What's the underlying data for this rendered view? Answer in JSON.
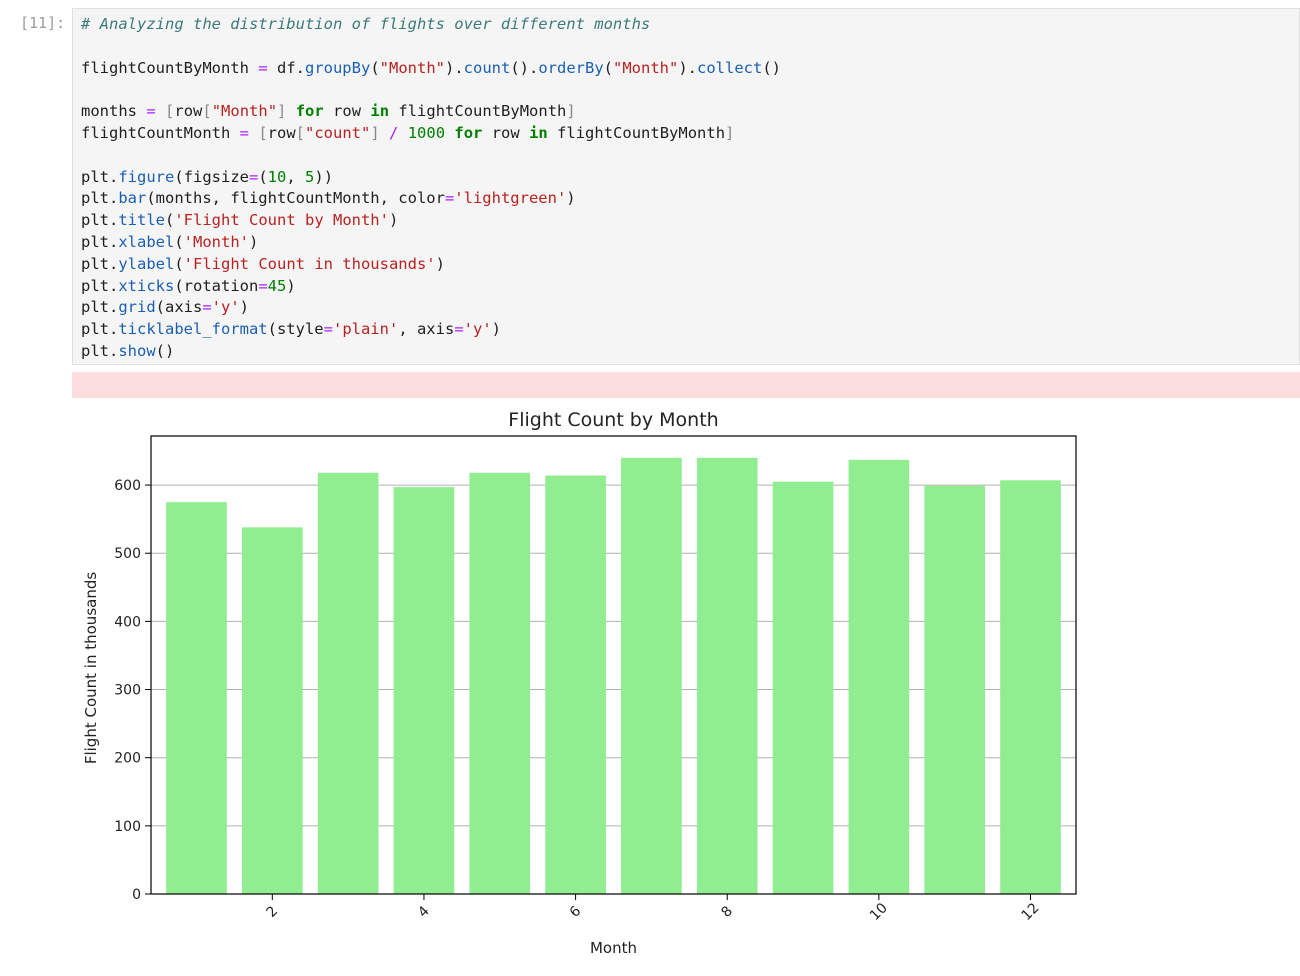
{
  "cell": {
    "prompt": "[11]:",
    "code_lines": [
      [
        [
          "cm",
          "# Analyzing the distribution of flights over different months"
        ]
      ],
      [],
      [
        [
          "pn",
          "flightCountByMonth "
        ],
        [
          "op",
          "="
        ],
        [
          "pn",
          " df."
        ],
        [
          "fn",
          "groupBy"
        ],
        [
          "pn",
          "("
        ],
        [
          "st",
          "\"Month\""
        ],
        [
          "pn",
          ")."
        ],
        [
          "fn",
          "count"
        ],
        [
          "pn",
          "()."
        ],
        [
          "fn",
          "orderBy"
        ],
        [
          "pn",
          "("
        ],
        [
          "st",
          "\"Month\""
        ],
        [
          "pn",
          ")."
        ],
        [
          "fn",
          "collect"
        ],
        [
          "pn",
          "()"
        ]
      ],
      [],
      [
        [
          "pn",
          "months "
        ],
        [
          "op",
          "="
        ],
        [
          "pn",
          " "
        ],
        [
          "bk",
          "["
        ],
        [
          "pn",
          "row"
        ],
        [
          "bk",
          "["
        ],
        [
          "st",
          "\"Month\""
        ],
        [
          "bk",
          "]"
        ],
        [
          "pn",
          " "
        ],
        [
          "kw",
          "for"
        ],
        [
          "pn",
          " row "
        ],
        [
          "kw",
          "in"
        ],
        [
          "pn",
          " flightCountByMonth"
        ],
        [
          "bk",
          "]"
        ]
      ],
      [
        [
          "pn",
          "flightCountMonth "
        ],
        [
          "op",
          "="
        ],
        [
          "pn",
          " "
        ],
        [
          "bk",
          "["
        ],
        [
          "pn",
          "row"
        ],
        [
          "bk",
          "["
        ],
        [
          "st",
          "\"count\""
        ],
        [
          "bk",
          "]"
        ],
        [
          "pn",
          " "
        ],
        [
          "op",
          "/"
        ],
        [
          "pn",
          " "
        ],
        [
          "nu",
          "1000"
        ],
        [
          "pn",
          " "
        ],
        [
          "kw",
          "for"
        ],
        [
          "pn",
          " row "
        ],
        [
          "kw",
          "in"
        ],
        [
          "pn",
          " flightCountByMonth"
        ],
        [
          "bk",
          "]"
        ]
      ],
      [],
      [
        [
          "pn",
          "plt."
        ],
        [
          "fn",
          "figure"
        ],
        [
          "pn",
          "(figsize"
        ],
        [
          "op",
          "="
        ],
        [
          "pn",
          "("
        ],
        [
          "nu",
          "10"
        ],
        [
          "pn",
          ", "
        ],
        [
          "nu",
          "5"
        ],
        [
          "pn",
          "))"
        ]
      ],
      [
        [
          "pn",
          "plt."
        ],
        [
          "fn",
          "bar"
        ],
        [
          "pn",
          "(months, flightCountMonth, color"
        ],
        [
          "op",
          "="
        ],
        [
          "st",
          "'lightgreen'"
        ],
        [
          "pn",
          ")"
        ]
      ],
      [
        [
          "pn",
          "plt."
        ],
        [
          "fn",
          "title"
        ],
        [
          "pn",
          "("
        ],
        [
          "st",
          "'Flight Count by Month'"
        ],
        [
          "pn",
          ")"
        ]
      ],
      [
        [
          "pn",
          "plt."
        ],
        [
          "fn",
          "xlabel"
        ],
        [
          "pn",
          "("
        ],
        [
          "st",
          "'Month'"
        ],
        [
          "pn",
          ")"
        ]
      ],
      [
        [
          "pn",
          "plt."
        ],
        [
          "fn",
          "ylabel"
        ],
        [
          "pn",
          "("
        ],
        [
          "st",
          "'Flight Count in thousands'"
        ],
        [
          "pn",
          ")"
        ]
      ],
      [
        [
          "pn",
          "plt."
        ],
        [
          "fn",
          "xticks"
        ],
        [
          "pn",
          "(rotation"
        ],
        [
          "op",
          "="
        ],
        [
          "nu",
          "45"
        ],
        [
          "pn",
          ")"
        ]
      ],
      [
        [
          "pn",
          "plt."
        ],
        [
          "fn",
          "grid"
        ],
        [
          "pn",
          "(axis"
        ],
        [
          "op",
          "="
        ],
        [
          "st",
          "'y'"
        ],
        [
          "pn",
          ")"
        ]
      ],
      [
        [
          "pn",
          "plt."
        ],
        [
          "fn",
          "ticklabel_format"
        ],
        [
          "pn",
          "(style"
        ],
        [
          "op",
          "="
        ],
        [
          "st",
          "'plain'"
        ],
        [
          "pn",
          ", axis"
        ],
        [
          "op",
          "="
        ],
        [
          "st",
          "'y'"
        ],
        [
          "pn",
          ")"
        ]
      ],
      [
        [
          "pn",
          "plt."
        ],
        [
          "fn",
          "show"
        ],
        [
          "pn",
          "()"
        ]
      ]
    ]
  },
  "colors": {
    "bar": "#90ee90",
    "grid": "#b0b0b0",
    "axis": "#000000",
    "text": "#222222",
    "stderr_background": "#fddede"
  },
  "chart_data": {
    "type": "bar",
    "title": "Flight Count by Month",
    "xlabel": "Month",
    "ylabel": "Flight Count in thousands",
    "x": [
      1,
      2,
      3,
      4,
      5,
      6,
      7,
      8,
      9,
      10,
      11,
      12
    ],
    "values": [
      575,
      538,
      618,
      597,
      618,
      614,
      640,
      640,
      605,
      637,
      599,
      607
    ],
    "xticks": [
      2,
      4,
      6,
      8,
      10,
      12
    ],
    "xtick_rotation_degrees": 45,
    "yticks": [
      0,
      100,
      200,
      300,
      400,
      500,
      600
    ],
    "ylim": [
      0,
      672
    ],
    "xlim": [
      0.4,
      12.6
    ],
    "grid": "y-axis only",
    "legend": "none"
  }
}
